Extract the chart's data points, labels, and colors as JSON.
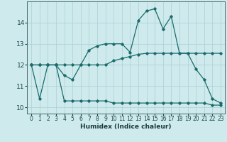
{
  "title": "",
  "xlabel": "Humidex (Indice chaleur)",
  "ylabel": "",
  "background_color": "#ceeaec",
  "grid_color": "#aed4d8",
  "line_color": "#1a6b6b",
  "xlim": [
    -0.5,
    23.5
  ],
  "ylim": [
    9.7,
    15.0
  ],
  "xticks": [
    0,
    1,
    2,
    3,
    4,
    5,
    6,
    7,
    8,
    9,
    10,
    11,
    12,
    13,
    14,
    15,
    16,
    17,
    18,
    19,
    20,
    21,
    22,
    23
  ],
  "yticks": [
    10,
    11,
    12,
    13,
    14
  ],
  "series": [
    {
      "x": [
        0,
        1,
        2,
        3,
        4,
        5,
        6,
        7,
        8,
        9,
        10,
        11,
        12,
        13,
        14,
        15,
        16,
        17,
        18,
        19,
        20,
        21,
        22,
        23
      ],
      "y": [
        12.0,
        10.4,
        12.0,
        12.0,
        11.5,
        11.3,
        12.0,
        12.7,
        12.9,
        13.0,
        13.0,
        13.0,
        12.6,
        14.1,
        14.55,
        14.65,
        13.7,
        14.3,
        12.55,
        12.55,
        11.8,
        11.3,
        10.4,
        10.2
      ]
    },
    {
      "x": [
        0,
        1,
        2,
        3,
        4,
        5,
        6,
        7,
        8,
        9,
        10,
        11,
        12,
        13,
        14,
        15,
        16,
        17,
        18,
        19,
        20,
        21,
        22,
        23
      ],
      "y": [
        12.0,
        12.0,
        12.0,
        12.0,
        10.3,
        10.3,
        10.3,
        10.3,
        10.3,
        10.3,
        10.2,
        10.2,
        10.2,
        10.2,
        10.2,
        10.2,
        10.2,
        10.2,
        10.2,
        10.2,
        10.2,
        10.2,
        10.1,
        10.1
      ]
    },
    {
      "x": [
        0,
        1,
        2,
        3,
        4,
        5,
        6,
        7,
        8,
        9,
        10,
        11,
        12,
        13,
        14,
        15,
        16,
        17,
        18,
        19,
        20,
        21,
        22,
        23
      ],
      "y": [
        12.0,
        12.0,
        12.0,
        12.0,
        12.0,
        12.0,
        12.0,
        12.0,
        12.0,
        12.0,
        12.2,
        12.3,
        12.4,
        12.5,
        12.55,
        12.55,
        12.55,
        12.55,
        12.55,
        12.55,
        12.55,
        12.55,
        12.55,
        12.55
      ]
    }
  ]
}
